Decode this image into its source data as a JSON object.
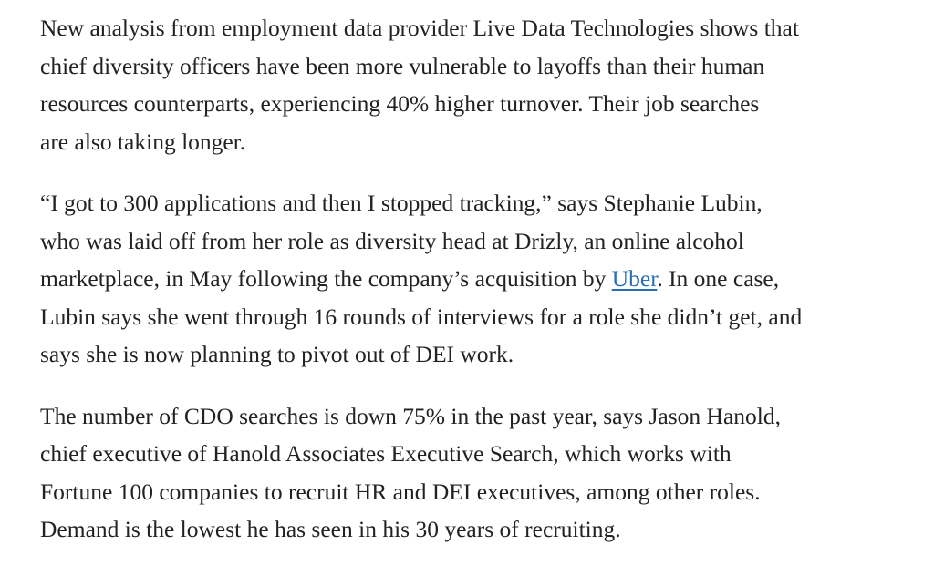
{
  "article": {
    "paragraphs": [
      {
        "lines": [
          "New analysis from employment data provider Live Data Technologies shows that",
          "chief diversity officers have been more vulnerable to layoffs than their human",
          "resources counterparts, experiencing 40% higher turnover. Their job searches",
          "are also taking longer."
        ]
      },
      {
        "lines": [
          "“I got to 300 applications and then I stopped tracking,” says Stephanie Lubin,",
          "who was laid off from her role as diversity head at Drizly, an online alcohol",
          "marketplace, in May following the company’s acquisition by ",
          "Lubin says she went through 16 rounds of interviews for a role she didn’t get, and",
          "says she is now planning to pivot out of DEI work."
        ],
        "link_text": "Uber",
        "after_link": ". In one case,"
      },
      {
        "lines": [
          "The number of CDO searches is down 75% in the past year, says Jason Hanold,",
          "chief executive of Hanold Associates Executive Search, which works with",
          "Fortune 100 companies to recruit HR and DEI executives, among other roles.",
          "Demand is the lowest he has seen in his 30 years of recruiting."
        ]
      }
    ],
    "colors": {
      "text": "#222222",
      "link": "#2a6db0"
    }
  }
}
